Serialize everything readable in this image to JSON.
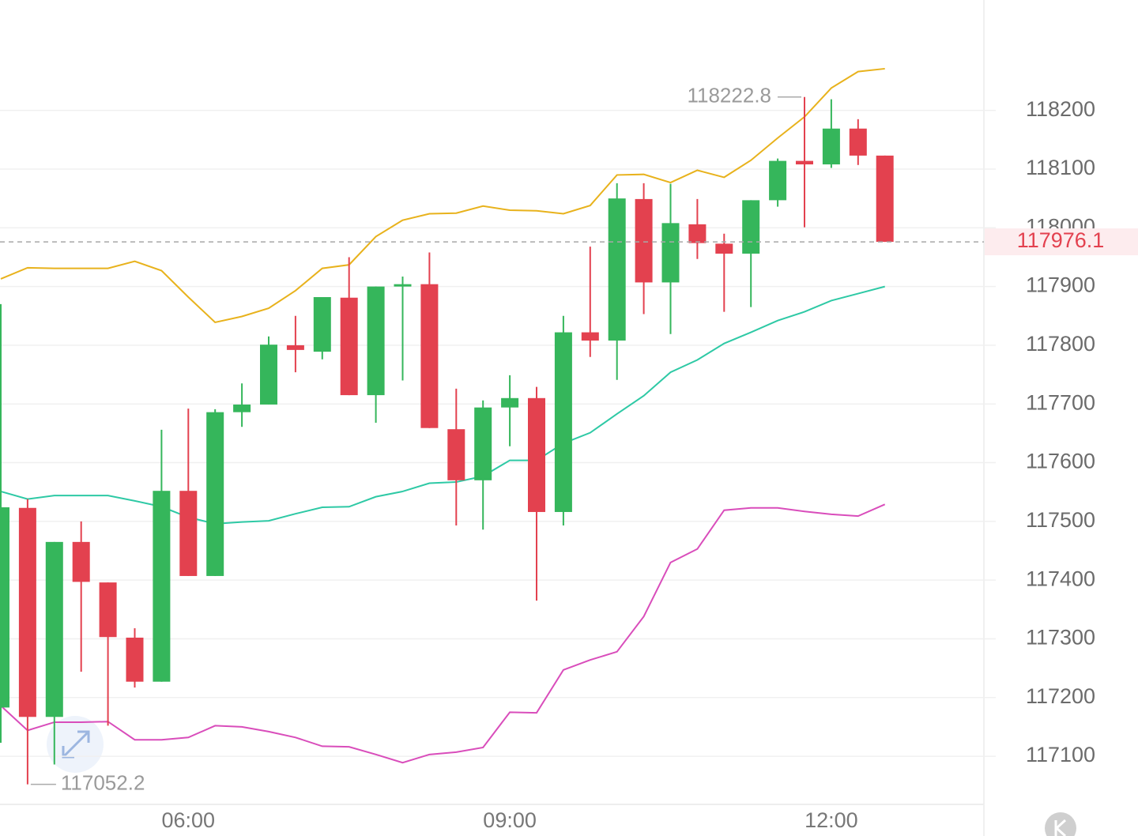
{
  "chart_data": {
    "type": "candlestick",
    "categories": [
      null,
      null,
      null,
      null,
      null,
      null,
      null,
      "06:00",
      null,
      null,
      null,
      null,
      null,
      null,
      null,
      null,
      null,
      null,
      null,
      "09:00",
      null,
      null,
      null,
      null,
      null,
      null,
      null,
      null,
      null,
      null,
      null,
      "12:00",
      null,
      null
    ],
    "open": [
      117183,
      117523,
      117167,
      117465,
      117396,
      117302,
      117227,
      117552,
      117407,
      117686,
      117699,
      117800,
      117789,
      117881,
      117715,
      117900,
      117904,
      117657,
      117570,
      117694,
      117710,
      117516,
      117822,
      117808,
      118049,
      117907,
      118006,
      117973,
      117956,
      118047,
      118114,
      118108,
      118169,
      118123
    ],
    "high": [
      117870,
      117538,
      117465,
      117500,
      117396,
      117318,
      117656,
      117692,
      117691,
      117735,
      117815,
      117850,
      117882,
      117950,
      117900,
      117917,
      117958,
      117726,
      117706,
      117749,
      117729,
      117850,
      117968,
      118076,
      118076,
      118075,
      118049,
      117990,
      118047,
      118118,
      118222.8,
      118219,
      118185,
      118123
    ],
    "low": [
      117123,
      117052.2,
      117086,
      117244,
      117152,
      117217,
      117227,
      117407,
      117407,
      117661,
      117699,
      117754,
      117776,
      117715,
      117668,
      117740,
      117659,
      117493,
      117486,
      117628,
      117365,
      117493,
      117780,
      117741,
      117853,
      117819,
      117947,
      117857,
      117865,
      118036,
      118001,
      118102,
      118107,
      117976.1
    ],
    "close": [
      117524,
      117167,
      117465,
      117397,
      117303,
      117227,
      117552,
      117407,
      117686,
      117699,
      117801,
      117792,
      117882,
      117715,
      117900,
      117904,
      117659,
      117570,
      117694,
      117710,
      117516,
      117822,
      117808,
      118050,
      117907,
      118008,
      117974,
      117956,
      118047,
      118114,
      118108,
      118169,
      118123,
      117976.1
    ],
    "up_color": "#35b65b",
    "down_color": "#e3414f",
    "upper_band": {
      "color": "#e8b21c",
      "values": [
        117913,
        117932,
        117931,
        117931,
        117931,
        117943,
        117927,
        117882,
        117839,
        117849,
        117863,
        117893,
        117931,
        117937,
        117985,
        118013,
        118024,
        118025,
        118037,
        118030,
        118029,
        118024,
        118038,
        118090,
        118091,
        118077,
        118098,
        118086,
        118115,
        118153,
        118189,
        118238,
        118266,
        118271
      ]
    },
    "middle_band": {
      "color": "#2ec9a5",
      "values": [
        117551,
        117538,
        117544,
        117544,
        117544,
        117535,
        117525,
        117507,
        117496,
        117499,
        117501,
        117513,
        117524,
        117525,
        117542,
        117551,
        117565,
        117567,
        117577,
        117604,
        117604,
        117633,
        117651,
        117683,
        117714,
        117754,
        117775,
        117803,
        117822,
        117842,
        117857,
        117876,
        117888,
        117900
      ]
    },
    "lower_band": {
      "color": "#d94dbb",
      "values": [
        117186,
        117144,
        117158,
        117158,
        117159,
        117128,
        117128,
        117132,
        117152,
        117150,
        117142,
        117132,
        117117,
        117116,
        117103,
        117089,
        117103,
        117107,
        117115,
        117175,
        117174,
        117247,
        117264,
        117278,
        117338,
        117430,
        117453,
        117519,
        117523,
        117523,
        117517,
        117512,
        117509,
        117529
      ]
    },
    "ylim": [
      117018,
      118388
    ],
    "yticks": [
      117100,
      117200,
      117300,
      117400,
      117500,
      117600,
      117700,
      117800,
      117900,
      118000,
      118100,
      118200
    ],
    "grid": true
  }
}
